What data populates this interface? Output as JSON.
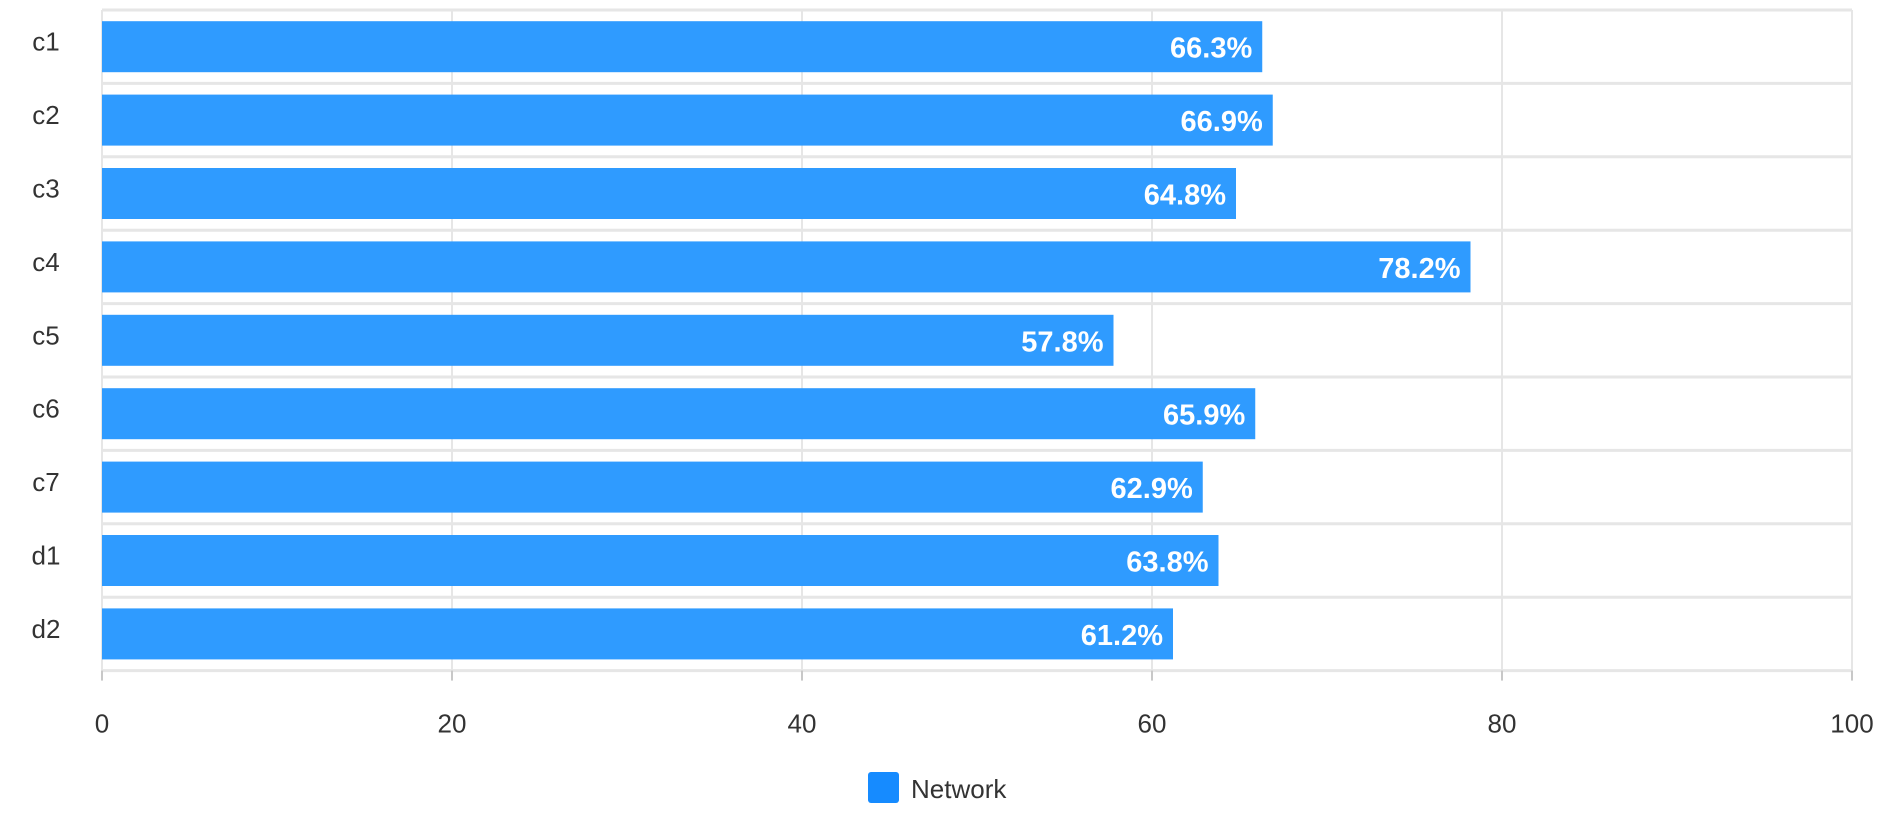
{
  "chart_data": {
    "type": "bar",
    "orientation": "horizontal",
    "categories": [
      "c1",
      "c2",
      "c3",
      "c4",
      "c5",
      "c6",
      "c7",
      "d1",
      "d2"
    ],
    "highlighted_category": "c7",
    "series": [
      {
        "name": "Network",
        "values": [
          66.3,
          66.9,
          64.8,
          78.2,
          57.8,
          65.9,
          62.9,
          63.8,
          61.2
        ],
        "labels": [
          "66.3%",
          "66.9%",
          "64.8%",
          "78.2%",
          "57.8%",
          "65.9%",
          "62.9%",
          "63.8%",
          "61.2%"
        ]
      }
    ],
    "title": "",
    "xlabel": "",
    "ylabel": "",
    "xlim": [
      0,
      100
    ],
    "x_ticks": [
      "0",
      "20",
      "40",
      "60",
      "80",
      "100"
    ],
    "grid": true,
    "legend": "bottom-center",
    "colors": {
      "bar": "#2f9bff",
      "legend_swatch": "#168bff",
      "highlight_label": "#e0661b",
      "label_default": "#333333",
      "grid": "#e6e6e6"
    }
  }
}
